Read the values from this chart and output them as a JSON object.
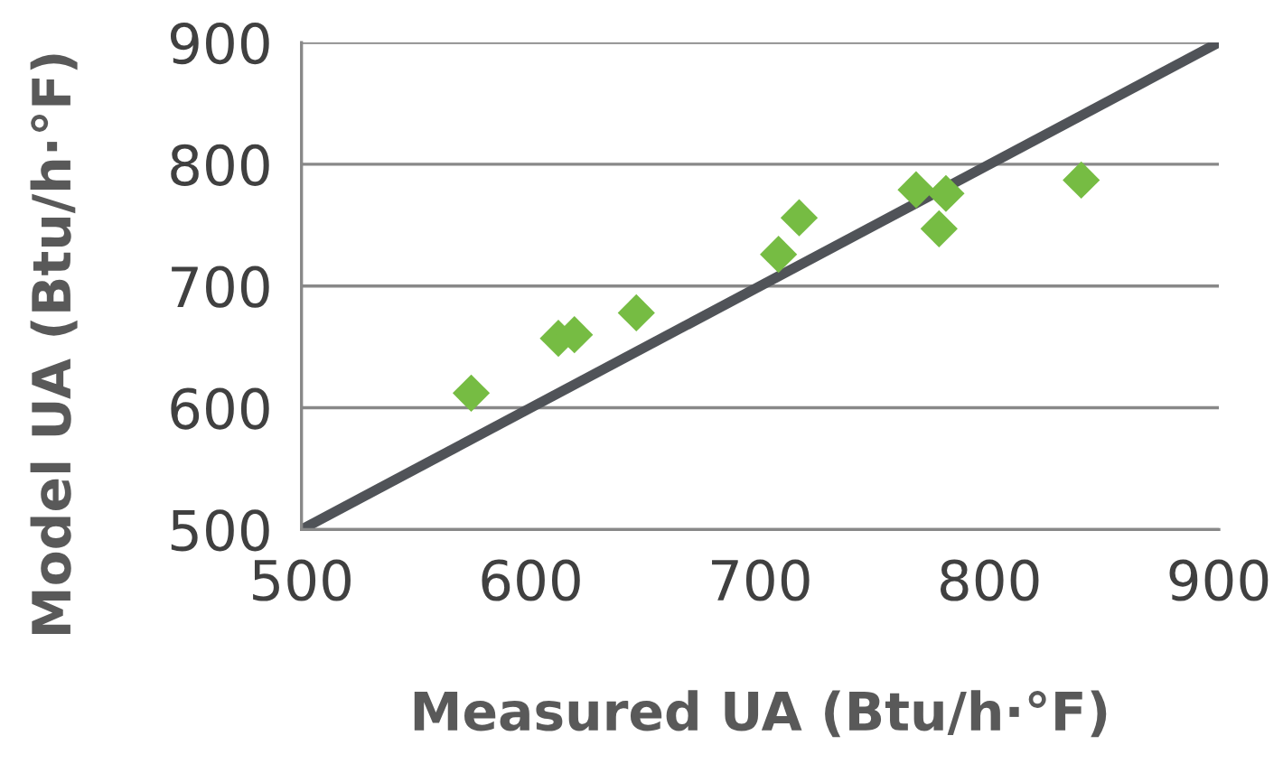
{
  "chart_data": {
    "type": "scatter",
    "xlabel": "Measured UA (Btu/h·°F)",
    "ylabel": "Model UA (Btu/h·°F)",
    "xlim": [
      500,
      900
    ],
    "ylim": [
      500,
      900
    ],
    "xticks": [
      500,
      600,
      700,
      800,
      900
    ],
    "yticks": [
      500,
      600,
      700,
      800,
      900
    ],
    "grid": "y",
    "marker": "diamond",
    "series": [
      {
        "type": "scatter",
        "color": "#76bc43",
        "x": [
          574,
          612,
          619,
          646,
          708,
          717,
          768,
          781,
          778,
          840
        ],
        "values": [
          612,
          657,
          660,
          678,
          726,
          756,
          779,
          776,
          747,
          787
        ]
      },
      {
        "type": "line",
        "color": "#505358",
        "marker": "none",
        "x": [
          500,
          900
        ],
        "values": [
          500,
          900
        ]
      }
    ]
  }
}
